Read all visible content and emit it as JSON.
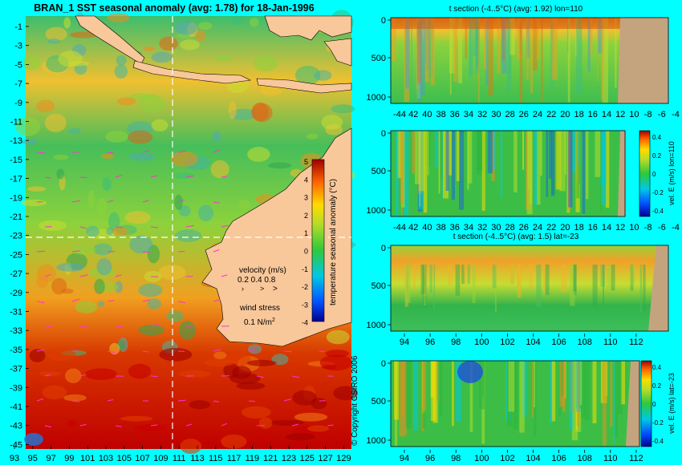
{
  "copyright": "© Copyright CSIRO 2006",
  "colors": {
    "background": "#00ffff",
    "land": "#f8c79a",
    "seafloor": "#c4a47f",
    "dashed_line": "#ffffff",
    "vector": "#ff33cc"
  },
  "chart_data": [
    {
      "id": "map",
      "type": "heatmap",
      "title": "BRAN_1 SST seasonal anomaly (avg: 1.78) for 18-Jan-1996",
      "xlim": [
        93,
        129
      ],
      "ylim": [
        -45,
        0
      ],
      "x_ticks": [
        "93",
        "95",
        "97",
        "99",
        "101",
        "103",
        "105",
        "107",
        "109",
        "111",
        "113",
        "115",
        "117",
        "119",
        "121",
        "123",
        "125",
        "127",
        "129"
      ],
      "y_ticks": [
        "-1",
        "-3",
        "-5",
        "-7",
        "-9",
        "-11",
        "-13",
        "-15",
        "-17",
        "-19",
        "-21",
        "-23",
        "-25",
        "-27",
        "-29",
        "-31",
        "-33",
        "-35",
        "-37",
        "-39",
        "-41",
        "-43",
        "-45"
      ],
      "section_lines": {
        "lon": 110,
        "lat": -23
      },
      "colorbar": {
        "label": "temperature seasonal anomaly (°C)",
        "range": [
          -4,
          5
        ],
        "ticks": [
          "5",
          "4",
          "3",
          "2",
          "1",
          "0",
          "-1",
          "-2",
          "-3",
          "-4"
        ]
      },
      "velocity_legend": {
        "title": "velocity (m/s)",
        "values": "0.2 0.4 0.8"
      },
      "wind_legend": {
        "title": "wind stress",
        "value": "0.1 N/m",
        "exponent": "2"
      }
    },
    {
      "id": "t_lon",
      "type": "heatmap",
      "title": "t section (-4..5°C) (avg: 1.92) lon=110",
      "x_ticks": [
        "-44",
        "42",
        "40",
        "38",
        "36",
        "34",
        "32",
        "30",
        "28",
        "26",
        "24",
        "22",
        "20",
        "18",
        "16",
        "14",
        "12",
        "10",
        "-8",
        "-6",
        "-4"
      ],
      "y_ticks": [
        "0",
        "500",
        "1000"
      ],
      "y_range": [
        0,
        1050
      ]
    },
    {
      "id": "v_lon",
      "type": "heatmap",
      "title": "",
      "x_ticks": [
        "-44",
        "42",
        "40",
        "38",
        "36",
        "34",
        "32",
        "30",
        "28",
        "26",
        "24",
        "22",
        "20",
        "18",
        "16",
        "14",
        "12",
        "10",
        "-8",
        "-6",
        "-4"
      ],
      "y_ticks": [
        "0",
        "500",
        "1000"
      ],
      "y_range": [
        0,
        1050
      ],
      "colorbar": {
        "label": "vel. E (m/s) lon=110",
        "range": [
          -0.4,
          0.4
        ],
        "ticks": [
          "0.4",
          "0.2",
          "0",
          "-0.2",
          "-0.4"
        ]
      }
    },
    {
      "id": "t_lat",
      "type": "heatmap",
      "title": "t section (-4..5°C) (avg: 1.5) lat=-23",
      "x_ticks": [
        "94",
        "96",
        "98",
        "100",
        "102",
        "104",
        "106",
        "108",
        "110",
        "112"
      ],
      "y_ticks": [
        "0",
        "500",
        "1000"
      ],
      "y_range": [
        0,
        1050
      ]
    },
    {
      "id": "v_lat",
      "type": "heatmap",
      "title": "",
      "x_ticks": [
        "94",
        "96",
        "98",
        "100",
        "102",
        "104",
        "106",
        "108",
        "110",
        "112"
      ],
      "y_ticks": [
        "0",
        "500",
        "1000"
      ],
      "y_range": [
        0,
        1050
      ],
      "colorbar": {
        "label": "vel. E (m/s) lat=-23",
        "range": [
          -0.4,
          0.4
        ],
        "ticks": [
          "0.4",
          "0.2",
          "0",
          "-0.2",
          "-0.4"
        ]
      }
    }
  ]
}
